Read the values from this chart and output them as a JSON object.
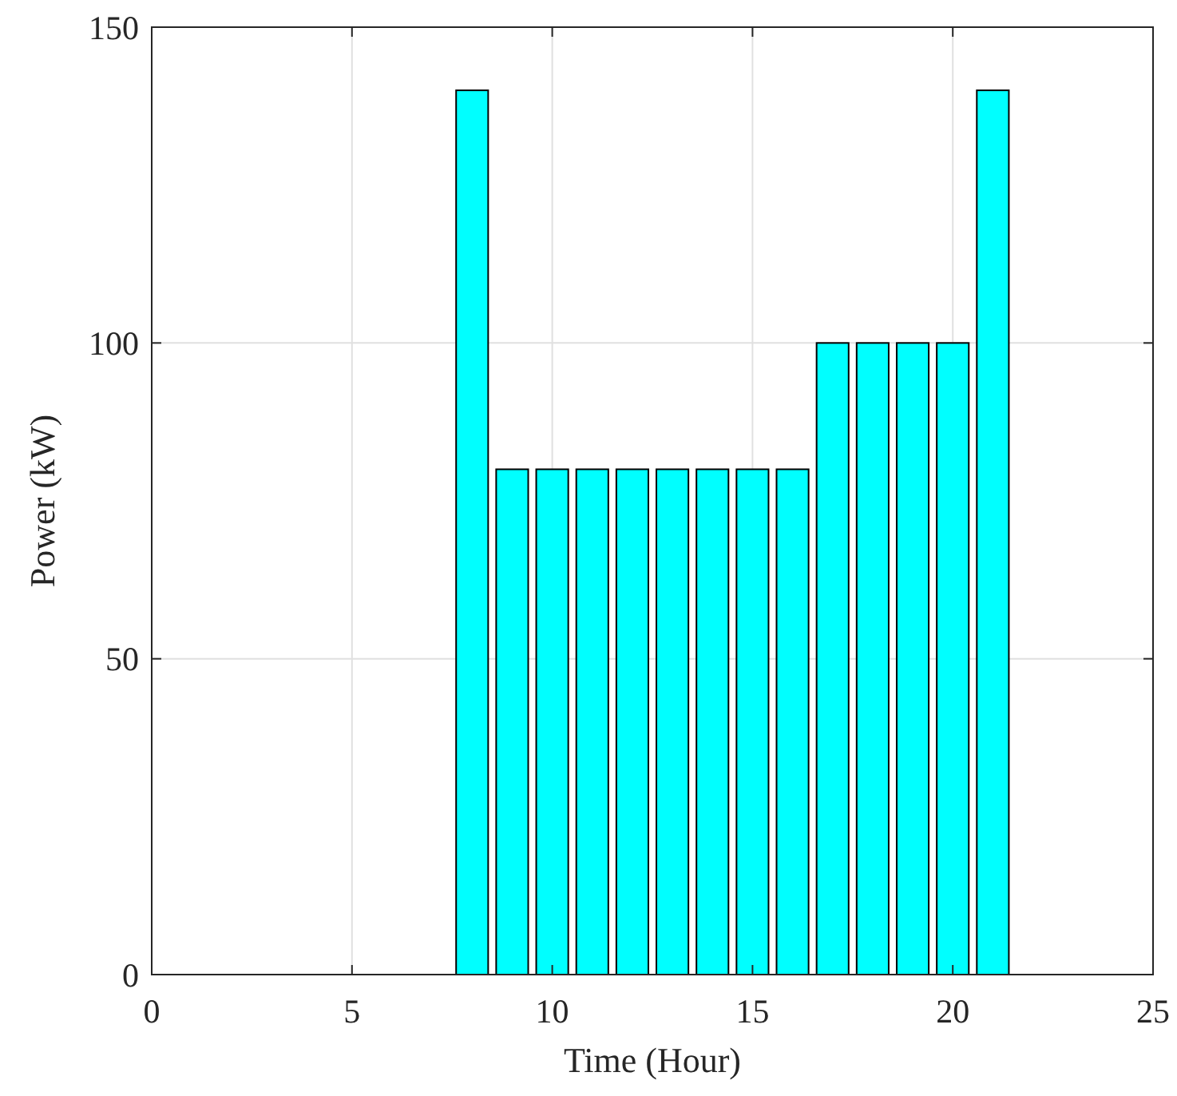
{
  "chart_data": {
    "type": "bar",
    "xlabel": "Time (Hour)",
    "ylabel": "Power (kW)",
    "x": [
      1,
      2,
      3,
      4,
      5,
      6,
      7,
      8,
      9,
      10,
      11,
      12,
      13,
      14,
      15,
      16,
      17,
      18,
      19,
      20,
      21,
      22,
      23,
      24
    ],
    "values": [
      0,
      0,
      0,
      0,
      0,
      0,
      0,
      140,
      80,
      80,
      80,
      80,
      80,
      80,
      80,
      80,
      100,
      100,
      100,
      100,
      140,
      0,
      0,
      0
    ],
    "color": "#00ffff",
    "xlim": [
      0,
      25
    ],
    "xticks": [
      0,
      5,
      10,
      15,
      20,
      25
    ],
    "ylim": [
      0,
      150
    ],
    "yticks": [
      0,
      50,
      100,
      150
    ],
    "grid": true
  }
}
